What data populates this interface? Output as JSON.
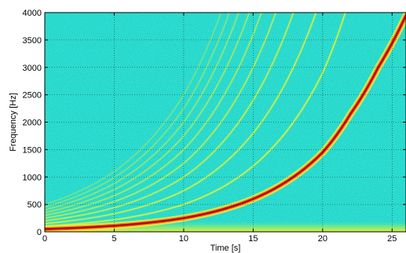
{
  "chart_data": {
    "type": "heatmap",
    "title": "",
    "xlabel": "Time [s]",
    "ylabel": "Frequency [Hz]",
    "xlim": [
      0,
      26
    ],
    "ylim": [
      0,
      4000
    ],
    "x_ticks": [
      0,
      5,
      10,
      15,
      20,
      25
    ],
    "y_ticks": [
      0,
      500,
      1000,
      1500,
      2000,
      2500,
      3000,
      3500,
      4000
    ],
    "grid": true,
    "colormap": "jet",
    "background_color": "#22d8d0",
    "fundamental": {
      "description_free": true,
      "points": [
        [
          0,
          50
        ],
        [
          5,
          110
        ],
        [
          10,
          250
        ],
        [
          15,
          600
        ],
        [
          20,
          1450
        ],
        [
          22,
          2150
        ],
        [
          24,
          3000
        ],
        [
          26,
          3950
        ]
      ],
      "color": "#c00000"
    },
    "harmonic_multipliers": [
      2,
      3,
      4,
      5,
      6,
      7,
      8,
      9,
      10
    ],
    "low_band_max_hz": 200
  }
}
